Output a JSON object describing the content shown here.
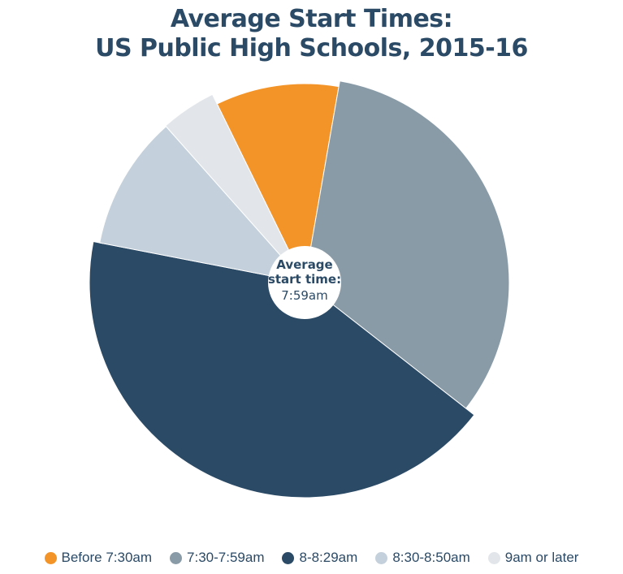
{
  "chart_data": {
    "type": "pie",
    "title_lines": [
      "Average Start Times:",
      "US Public High Schools, 2015-16"
    ],
    "categories": [
      "Before 7:30am",
      "7:30-7:59am",
      "8-8:29am",
      "8:30-8:50am",
      "9am or later"
    ],
    "values": [
      10.0,
      32.8,
      42.5,
      10.4,
      4.3
    ],
    "colors": [
      "#f39429",
      "#8a9ba8",
      "#2b4a66",
      "#c4d0db",
      "#e2e6ea"
    ],
    "center_label": {
      "line1": "Average",
      "line2": "start time:",
      "value": "7:59am"
    },
    "legend_position": "bottom",
    "grid": false
  }
}
